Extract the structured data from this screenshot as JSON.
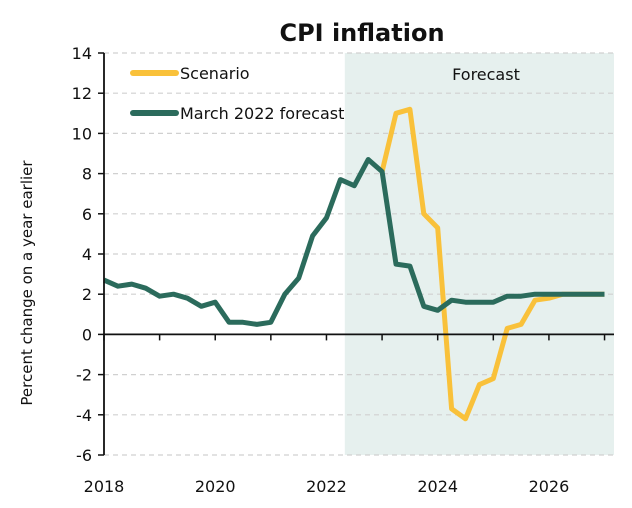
{
  "chart_data": {
    "type": "line",
    "title": "CPI inflation",
    "xlabel": "",
    "ylabel": "Percent change on a year earlier",
    "ylim": [
      -6,
      14
    ],
    "yticks": [
      -6,
      -4,
      -2,
      0,
      2,
      4,
      6,
      8,
      10,
      12,
      14
    ],
    "xlim": [
      2018,
      2027
    ],
    "xticks": [
      2018,
      2019,
      2020,
      2021,
      2022,
      2023,
      2024,
      2025,
      2026,
      2027
    ],
    "xtick_labels": [
      "2018",
      "",
      "2020",
      "",
      "2022",
      "",
      "2024",
      "",
      "2026",
      ""
    ],
    "grid": "horizontal dashed",
    "legend_position": "top-left",
    "frequency": "quarterly",
    "forecast_region": {
      "label": "Forecast",
      "start": 2022.33,
      "end": 2027,
      "color": "#E6F0EE"
    },
    "series": [
      {
        "name": "Scenario",
        "color": "#F9C13A",
        "start": "2023Q1",
        "x": [
          2023.0,
          2023.25,
          2023.5,
          2023.75,
          2024.0,
          2024.25,
          2024.5,
          2024.75,
          2025.0,
          2025.25,
          2025.5,
          2025.75,
          2026.0,
          2026.25,
          2026.5,
          2026.75,
          2027.0
        ],
        "values": [
          8.1,
          11.0,
          11.2,
          6.0,
          5.3,
          -3.7,
          -4.2,
          -2.5,
          -2.2,
          0.3,
          0.5,
          1.7,
          1.8,
          2.0,
          2.0,
          2.0,
          2.0
        ]
      },
      {
        "name": "March 2022 forecast",
        "color": "#2B6B5C",
        "start": "2018Q1",
        "x": [
          2018.0,
          2018.25,
          2018.5,
          2018.75,
          2019.0,
          2019.25,
          2019.5,
          2019.75,
          2020.0,
          2020.25,
          2020.5,
          2020.75,
          2021.0,
          2021.25,
          2021.5,
          2021.75,
          2022.0,
          2022.25,
          2022.5,
          2022.75,
          2023.0,
          2023.25,
          2023.5,
          2023.75,
          2024.0,
          2024.25,
          2024.5,
          2024.75,
          2025.0,
          2025.25,
          2025.5,
          2025.75,
          2026.0,
          2026.25,
          2026.5,
          2026.75,
          2027.0
        ],
        "values": [
          2.7,
          2.4,
          2.5,
          2.3,
          1.9,
          2.0,
          1.8,
          1.4,
          1.6,
          0.6,
          0.6,
          0.5,
          0.6,
          2.0,
          2.8,
          4.9,
          5.8,
          7.7,
          7.4,
          8.7,
          8.1,
          3.5,
          3.4,
          1.4,
          1.2,
          1.7,
          1.6,
          1.6,
          1.6,
          1.9,
          1.9,
          2.0,
          2.0,
          2.0,
          2.0,
          2.0,
          2.0
        ]
      }
    ]
  }
}
